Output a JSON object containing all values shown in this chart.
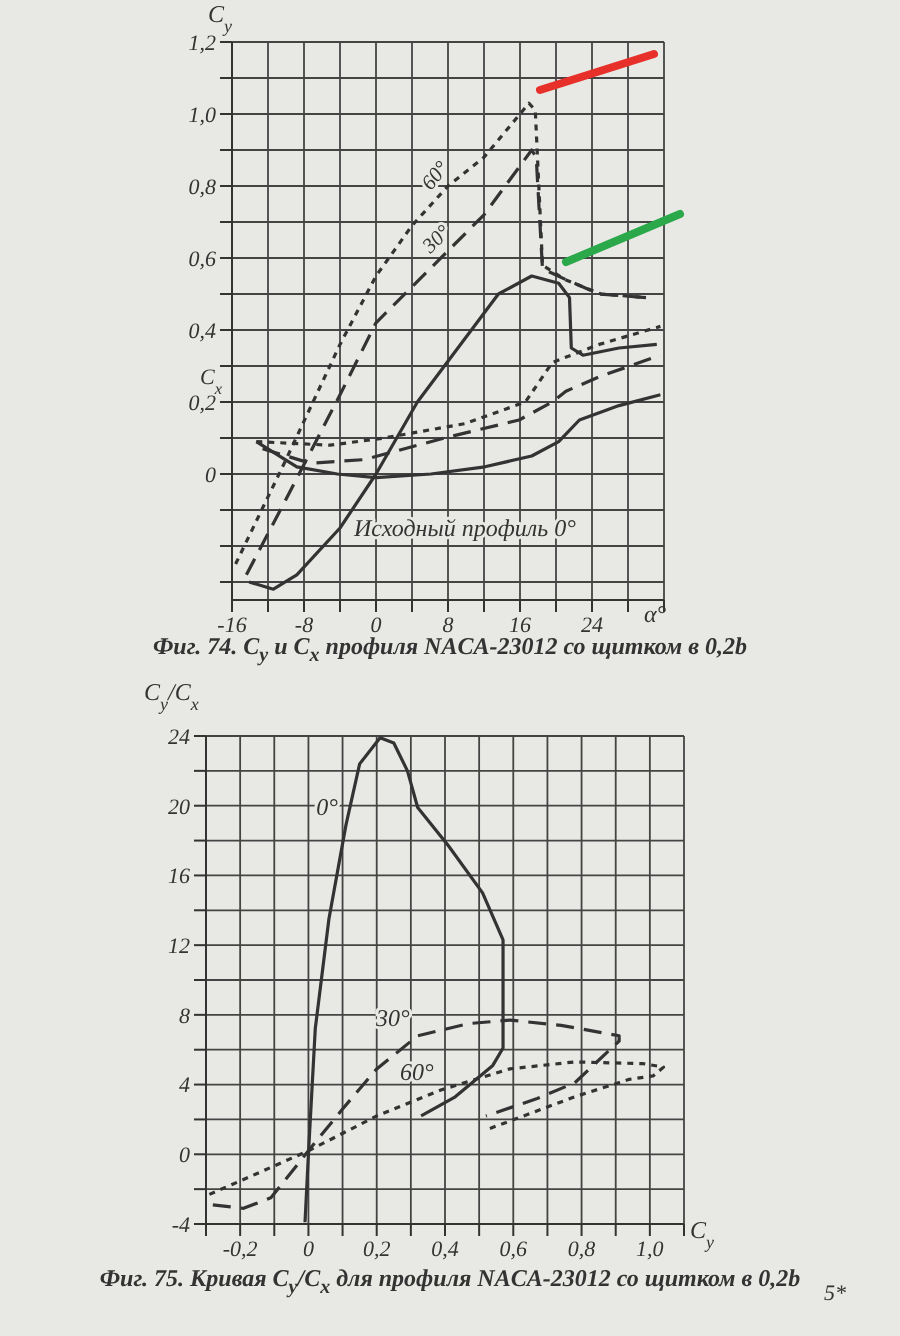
{
  "chart_data": [
    {
      "type": "line",
      "title": "Фиг. 74. C$_{y}$ и C$_{x}$ профиля NACA-23012 со щитком в 0,2b",
      "xlabel": "α°",
      "ylabel": "C$_{y}$",
      "annotations": [
        "C$_{x}$"
      ],
      "legend": false,
      "grid": true,
      "marker": "none",
      "xlim": [
        -16,
        32
      ],
      "ylim": [
        -0.35,
        1.2
      ],
      "xticks": [
        -16,
        {
          "value": -12,
          "label": null
        },
        -8,
        {
          "value": -4,
          "label": null
        },
        0,
        {
          "value": 4,
          "label": null
        },
        8,
        {
          "value": 12,
          "label": null
        },
        16,
        {
          "value": 20,
          "label": null
        },
        24,
        {
          "value": 28,
          "label": null
        },
        {
          "value": 32,
          "label": null
        }
      ],
      "yticks": [
        {
          "value": -0.3,
          "label": null
        },
        {
          "value": -0.2,
          "label": null
        },
        {
          "value": -0.1,
          "label": null
        },
        0,
        {
          "value": 0.1,
          "label": null
        },
        {
          "value": 0.2,
          "label": "0,2"
        },
        {
          "value": 0.3,
          "label": null
        },
        {
          "value": 0.4,
          "label": "0,4"
        },
        {
          "value": 0.5,
          "label": null
        },
        {
          "value": 0.6,
          "label": "0,6"
        },
        {
          "value": 0.7,
          "label": null
        },
        {
          "value": 0.8,
          "label": "0,8"
        },
        {
          "value": 0.9,
          "label": null
        },
        {
          "value": 1.0,
          "label": "1,0"
        },
        {
          "value": 1.1,
          "label": null
        },
        {
          "value": 1.2,
          "label": "1,2"
        }
      ],
      "series": [
        {
          "name": "60°",
          "color": "#333333",
          "line_style": "dotted",
          "x": [
            -15.6,
            -10,
            -4,
            0,
            4,
            8,
            12,
            17,
            17.7,
            18.5,
            21,
            25,
            30
          ],
          "values": [
            -0.25,
            0.04,
            0.36,
            0.55,
            0.69,
            0.8,
            0.88,
            1.03,
            1.01,
            0.58,
            0.54,
            0.5,
            0.49
          ]
        },
        {
          "name": "30°",
          "color": "#333333",
          "line_style": "dashed",
          "x": [
            -14.4,
            -10,
            -4,
            0,
            4,
            8,
            12,
            17.3,
            17.8,
            18.5,
            21.1,
            24.8,
            30
          ],
          "values": [
            -0.28,
            -0.07,
            0.22,
            0.42,
            0.52,
            0.62,
            0.72,
            0.9,
            0.88,
            0.57,
            0.54,
            0.5,
            0.49
          ]
        },
        {
          "name": "Исходный профиль 0°",
          "color": "#333333",
          "line_style": "solid",
          "x": [
            -14.1,
            -11.4,
            -8.8,
            -4,
            0,
            4.6,
            10.6,
            13.6,
            17.3,
            20.3,
            21.5,
            21.7,
            23,
            27,
            31.2
          ],
          "values": [
            -0.3,
            -0.32,
            -0.28,
            -0.15,
            0,
            0.2,
            0.4,
            0.5,
            0.55,
            0.53,
            0.49,
            0.35,
            0.33,
            0.35,
            0.36
          ]
        },
        {
          "color": "#333333",
          "line_style": "solid",
          "x": [
            -13.3,
            -8.8,
            -4.3,
            0,
            6.1,
            12.1,
            17.3,
            20.3,
            22.6,
            27,
            31.6
          ],
          "values": [
            0.09,
            0.02,
            0,
            -0.01,
            0,
            0.02,
            0.05,
            0.09,
            0.15,
            0.19,
            0.22
          ]
        },
        {
          "color": "#333333",
          "line_style": "dotted",
          "x": [
            -13.3,
            -5.1,
            0.9,
            9.9,
            16.6,
            19.6,
            24.8,
            31.6
          ],
          "values": [
            0.09,
            0.08,
            0.1,
            0.14,
            0.2,
            0.31,
            0.36,
            0.41
          ]
        },
        {
          "color": "#333333",
          "line_style": "dashed",
          "x": [
            -12.6,
            -7.3,
            -1.3,
            7.6,
            15.9,
            19.6,
            21.1,
            24.8,
            31.6
          ],
          "values": [
            0.07,
            0.03,
            0.04,
            0.1,
            0.15,
            0.2,
            0.23,
            0.27,
            0.33
          ]
        }
      ]
    },
    {
      "type": "line",
      "title": "Фиг. 75. Кривая C$_{y}$/C$_{x}$ для профиля NACA-23012 со щитком в 0,2b",
      "xlabel": "C$_{y}$",
      "ylabel": "C$_{y}$/C$_{x}$",
      "annotations": [
        "5*"
      ],
      "legend": false,
      "grid": true,
      "marker": "none",
      "xlim": [
        -0.3,
        1.1
      ],
      "ylim": [
        -4,
        24
      ],
      "xticks": [
        {
          "value": -0.3,
          "label": null
        },
        {
          "value": -0.2,
          "label": "-0,2"
        },
        {
          "value": -0.1,
          "label": null
        },
        0,
        {
          "value": 0.1,
          "label": null
        },
        {
          "value": 0.2,
          "label": "0,2"
        },
        {
          "value": 0.3,
          "label": null
        },
        {
          "value": 0.4,
          "label": "0,4"
        },
        {
          "value": 0.5,
          "label": null
        },
        {
          "value": 0.6,
          "label": "0,6"
        },
        {
          "value": 0.7,
          "label": null
        },
        {
          "value": 0.8,
          "label": "0,8"
        },
        {
          "value": 0.9,
          "label": null
        },
        {
          "value": 1.0,
          "label": "1,0"
        },
        {
          "value": 1.1,
          "label": null
        }
      ],
      "yticks": [
        -4,
        {
          "value": -2,
          "label": null
        },
        0,
        {
          "value": 2,
          "label": null
        },
        4,
        {
          "value": 6,
          "label": null
        },
        8,
        {
          "value": 10,
          "label": null
        },
        12,
        {
          "value": 14,
          "label": null
        },
        16,
        {
          "value": 18,
          "label": null
        },
        20,
        {
          "value": 22,
          "label": null
        },
        24
      ],
      "series": [
        {
          "name": "0°",
          "color": "#333333",
          "line_style": "solid",
          "x": [
            -0.01,
            0,
            0.02,
            0.06,
            0.11,
            0.15,
            0.21,
            0.25,
            0.29,
            0.32,
            0.41,
            0.51,
            0.57,
            0.57,
            0.57,
            0.54,
            0.43,
            0.33
          ],
          "values": [
            -3.9,
            0,
            7.2,
            13.5,
            18.9,
            22.4,
            23.9,
            23.6,
            22,
            19.9,
            17.7,
            15,
            12.3,
            7.6,
            6.1,
            5.1,
            3.3,
            2.2
          ]
        },
        {
          "name": "30°",
          "color": "#333333",
          "line_style": "dashed",
          "x": [
            -0.28,
            -0.19,
            -0.11,
            0,
            0.1,
            0.2,
            0.32,
            0.47,
            0.59,
            0.74,
            0.91,
            0.91,
            0.78,
            0.67,
            0.52
          ],
          "values": [
            -2.9,
            -3.1,
            -2.5,
            0.2,
            2.6,
            4.9,
            6.8,
            7.5,
            7.7,
            7.4,
            6.8,
            6.5,
            4.1,
            3.2,
            2.2
          ]
        },
        {
          "name": "60°",
          "color": "#333333",
          "line_style": "dotted",
          "x": [
            -0.29,
            -0.15,
            0,
            0.2,
            0.39,
            0.59,
            0.78,
            0.98,
            1.04,
            1.01,
            0.94,
            0.78,
            0.63,
            0.52
          ],
          "values": [
            -2.3,
            -1.1,
            0.2,
            2.2,
            3.7,
            4.9,
            5.3,
            5.2,
            5.0,
            4.5,
            4.3,
            3.3,
            2.2,
            1.4
          ]
        }
      ]
    }
  ]
}
